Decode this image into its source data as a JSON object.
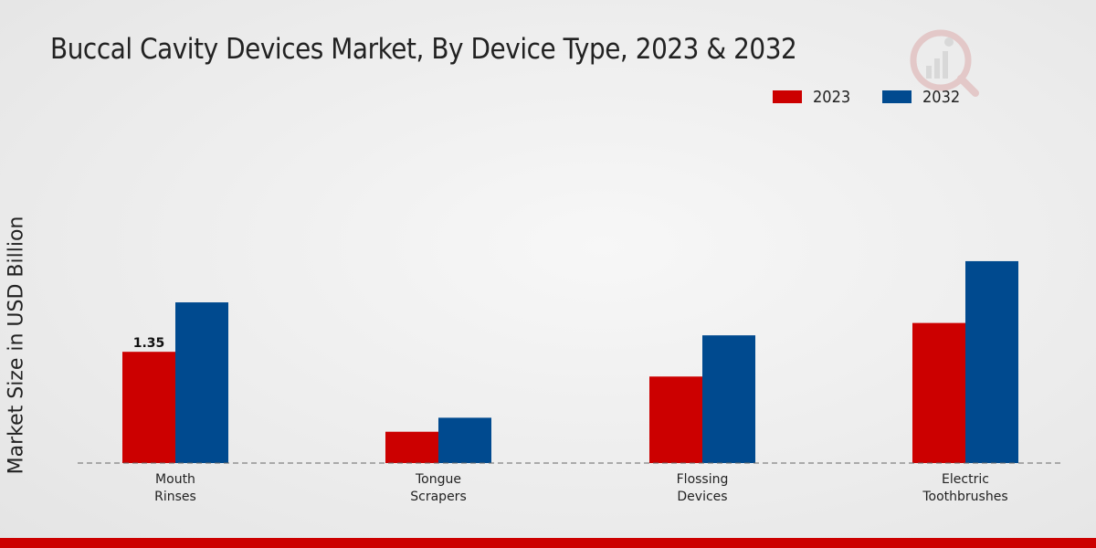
{
  "chart_data": {
    "type": "bar",
    "title": "Buccal Cavity Devices Market, By Device Type, 2023 & 2032",
    "xlabel": "",
    "ylabel": "Market Size in USD Billion",
    "categories": [
      [
        "Mouth",
        "Rinses"
      ],
      [
        "Tongue",
        "Scrapers"
      ],
      [
        "Flossing",
        "Devices"
      ],
      [
        "Electric",
        "Toothbrushes"
      ]
    ],
    "series": [
      {
        "name": "2023",
        "color": "#cc0000",
        "values": [
          1.35,
          0.38,
          1.05,
          1.7
        ]
      },
      {
        "name": "2032",
        "color": "#004a8f",
        "values": [
          1.95,
          0.55,
          1.55,
          2.45
        ]
      }
    ],
    "data_labels": [
      {
        "series": 0,
        "index": 0,
        "text": "1.35"
      }
    ],
    "ylim": [
      0,
      4.4
    ],
    "grid": false,
    "legend_position": "top-right"
  }
}
